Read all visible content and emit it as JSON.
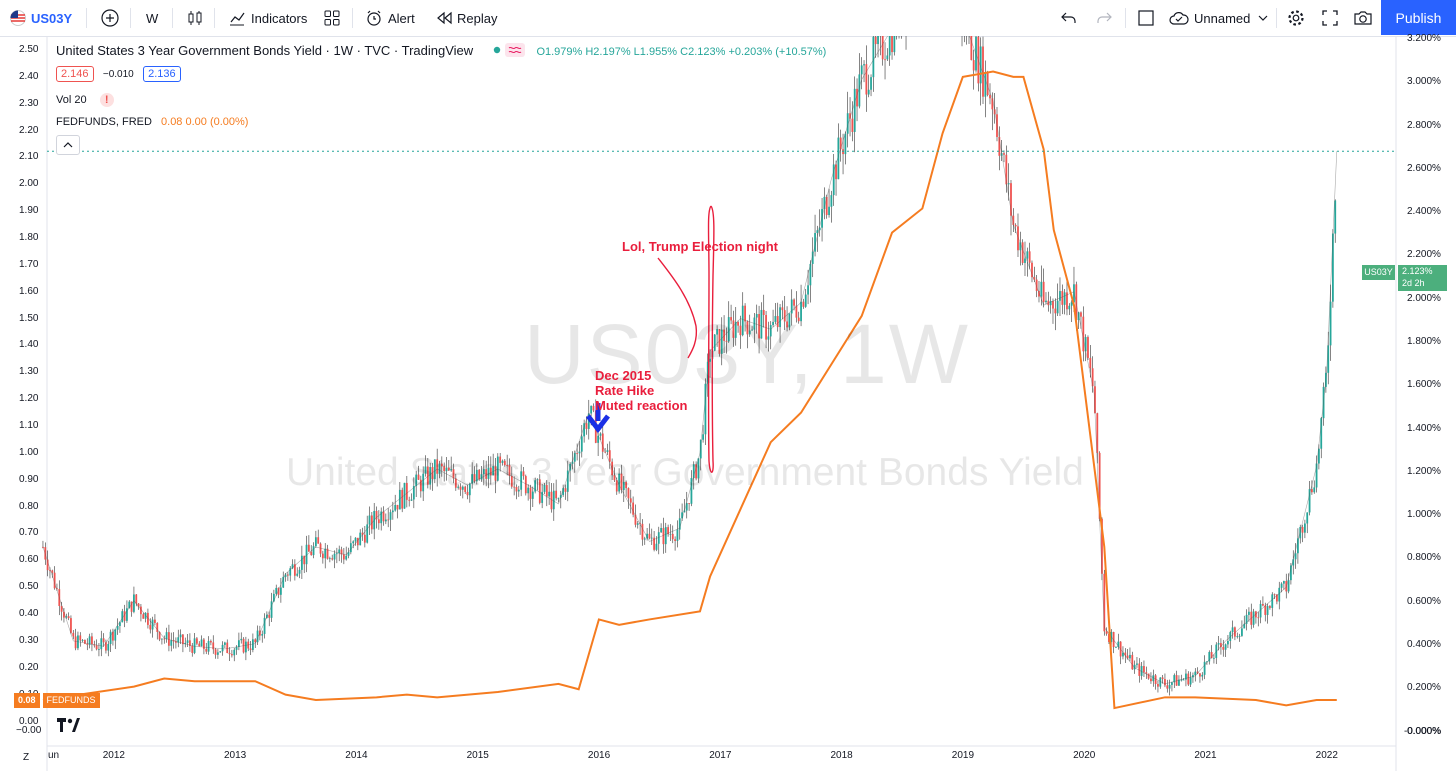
{
  "toolbar": {
    "symbol": "US03Y",
    "interval": "W",
    "indicators": "Indicators",
    "alert": "Alert",
    "replay": "Replay",
    "layout_name": "Unnamed",
    "publish": "Publish"
  },
  "legend": {
    "title": "United States 3 Year Government Bonds Yield · 1W · TVC · TradingView",
    "ohlc": "O1.979% H2.197% L1.955% C2.123% +0.203% (+10.57%)",
    "bid": "2.146",
    "spread": "−0.010",
    "ask": "2.136",
    "vol": "Vol 20",
    "vol_warn": "!",
    "fed_label": "FEDFUNDS, FRED",
    "fed_values": "0.08 0.00 (0.00%)"
  },
  "watermark": {
    "symbol": "US03Y, 1W",
    "name": "United States 3 Year Government Bonds Yield"
  },
  "annotations": {
    "election": "Lol, Trump Election night",
    "dec2015_line1": "Dec 2015",
    "dec2015_line2": "Rate Hike",
    "dec2015_line3": "Muted reaction"
  },
  "price_tag": {
    "symbol": "US03Y",
    "value": "2.123%",
    "countdown": "2d 2h"
  },
  "fed_tag": {
    "value": "0.08",
    "name": "FEDFUNDS"
  },
  "footer": {
    "timezone_btn": "Z",
    "first_label": "un"
  },
  "colors": {
    "up": "#26a69a",
    "down": "#ef5350",
    "fed": "#f57c20",
    "annotation": "#e91e3c",
    "accent": "#2962ff",
    "dotted": "#26a69a"
  },
  "chart_data": {
    "type": "line",
    "series": [
      {
        "name": "US03Y",
        "x": [
          "2011-06",
          "2011-09",
          "2011-12",
          "2012-03",
          "2012-06",
          "2012-09",
          "2012-12",
          "2013-03",
          "2013-06",
          "2013-09",
          "2013-12",
          "2014-03",
          "2014-06",
          "2014-09",
          "2014-12",
          "2015-03",
          "2015-06",
          "2015-09",
          "2015-12",
          "2016-03",
          "2016-06",
          "2016-09",
          "2016-11",
          "2016-12",
          "2017-03",
          "2017-06",
          "2017-09",
          "2017-12",
          "2018-03",
          "2018-06",
          "2018-09",
          "2018-11",
          "2019-01",
          "2019-04",
          "2019-06",
          "2019-09",
          "2019-12",
          "2020-02",
          "2020-03",
          "2020-06",
          "2020-09",
          "2020-12",
          "2021-03",
          "2021-06",
          "2021-09",
          "2021-12",
          "2022-01",
          "2022-02"
        ],
        "values": [
          0.65,
          0.3,
          0.28,
          0.45,
          0.31,
          0.28,
          0.27,
          0.29,
          0.55,
          0.65,
          0.62,
          0.76,
          0.85,
          0.94,
          0.88,
          0.94,
          0.88,
          0.81,
          1.15,
          0.88,
          0.67,
          0.72,
          1.0,
          1.38,
          1.5,
          1.46,
          1.56,
          2.02,
          2.39,
          2.58,
          2.8,
          3.05,
          2.62,
          2.31,
          1.85,
          1.55,
          1.6,
          1.22,
          0.35,
          0.2,
          0.14,
          0.17,
          0.3,
          0.4,
          0.5,
          0.95,
          1.3,
          2.123
        ]
      },
      {
        "name": "FEDFUNDS",
        "x": [
          "2011-06",
          "2012-03",
          "2012-06",
          "2012-09",
          "2013-03",
          "2013-06",
          "2013-09",
          "2014-03",
          "2014-06",
          "2014-09",
          "2015-03",
          "2015-09",
          "2015-11",
          "2016-01",
          "2016-03",
          "2016-06",
          "2016-11",
          "2016-12",
          "2017-03",
          "2017-06",
          "2017-09",
          "2017-12",
          "2018-03",
          "2018-06",
          "2018-09",
          "2018-11",
          "2019-01",
          "2019-04",
          "2019-06",
          "2019-07",
          "2019-09",
          "2019-10",
          "2019-12",
          "2020-03",
          "2020-04",
          "2020-09",
          "2020-12",
          "2021-06",
          "2021-09",
          "2021-12",
          "2022-02"
        ],
        "values": [
          0.08,
          0.13,
          0.16,
          0.15,
          0.15,
          0.1,
          0.08,
          0.09,
          0.1,
          0.09,
          0.11,
          0.14,
          0.12,
          0.38,
          0.36,
          0.38,
          0.41,
          0.54,
          0.79,
          1.04,
          1.15,
          1.33,
          1.51,
          1.82,
          1.91,
          2.19,
          2.4,
          2.42,
          2.4,
          2.4,
          2.13,
          1.83,
          1.55,
          0.65,
          0.05,
          0.09,
          0.09,
          0.08,
          0.06,
          0.08,
          0.08
        ]
      }
    ],
    "ylim": [
      -0.05,
      2.55
    ],
    "left_ticks": [
      "2.50",
      "2.40",
      "2.30",
      "2.20",
      "2.10",
      "2.00",
      "1.90",
      "1.80",
      "1.70",
      "1.60",
      "1.50",
      "1.40",
      "1.30",
      "1.20",
      "1.10",
      "1.00",
      "0.90",
      "0.80",
      "0.70",
      "0.60",
      "0.50",
      "0.40",
      "0.30",
      "0.20",
      "0.10",
      "0.00"
    ],
    "right_ticks": [
      "3.200%",
      "3.000%",
      "2.800%",
      "2.600%",
      "2.400%",
      "2.200%",
      "2.000%",
      "1.800%",
      "1.600%",
      "1.400%",
      "1.200%",
      "1.000%",
      "0.800%",
      "0.600%",
      "0.400%",
      "0.200%",
      "0.000%"
    ],
    "x_ticks": [
      "2012",
      "2013",
      "2014",
      "2015",
      "2016",
      "2017",
      "2018",
      "2019",
      "2020",
      "2021",
      "2022"
    ],
    "grid": false
  }
}
